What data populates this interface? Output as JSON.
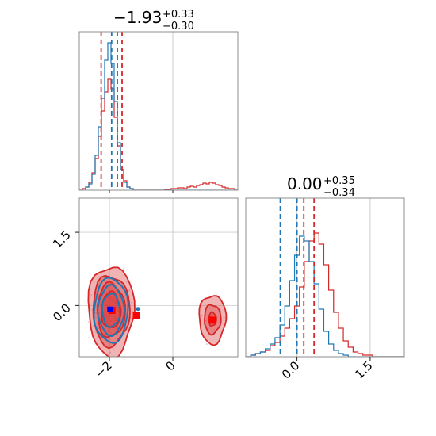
{
  "colors": {
    "blue": "#1f77b4",
    "red": "#d62728",
    "frame": "#8c8c8c",
    "grid": "#cccccc"
  },
  "chart_data": {
    "type": "corner",
    "parameters": [
      {
        "median": "−1.93",
        "plus": "+0.33",
        "minus": "−0.30"
      },
      {
        "median": "0.00",
        "plus": "+0.35",
        "minus": "−0.34"
      }
    ],
    "axis_ranges": {
      "x0": [
        -2.95,
        2.05
      ],
      "x1": [
        -1.05,
        2.2
      ],
      "density": [
        0,
        1
      ]
    },
    "x_ticks": {
      "p0": [
        -2,
        0
      ],
      "p0_labels": [
        "−2",
        "0"
      ],
      "p1": [
        0.0,
        1.5
      ],
      "p1_labels": [
        "0.0",
        "1.5"
      ]
    },
    "y_ticks": {
      "p1": [
        1.5,
        0.0
      ],
      "p1_labels": [
        "1.5",
        "0.0"
      ]
    },
    "grid": true,
    "reference_lines": {
      "p0": 0.0,
      "p1": 0.0
    },
    "hist_p0": {
      "bin_start": -2.95,
      "bin_width": 0.1,
      "blue": [
        0,
        0,
        0.02,
        0.04,
        0.1,
        0.22,
        0.4,
        0.58,
        0.82,
        0.93,
        0.8,
        0.56,
        0.3,
        0.13,
        0.05,
        0.02,
        0.01,
        0,
        0,
        0,
        0,
        0,
        0,
        0,
        0,
        0,
        0,
        0,
        0,
        0,
        0,
        0,
        0,
        0,
        0,
        0,
        0,
        0,
        0,
        0,
        0,
        0,
        0,
        0,
        0,
        0,
        0,
        0,
        0,
        0
      ],
      "red": [
        0,
        0.01,
        0.02,
        0.05,
        0.11,
        0.2,
        0.34,
        0.5,
        0.62,
        0.7,
        0.64,
        0.46,
        0.28,
        0.13,
        0.06,
        0.02,
        0.01,
        0,
        0,
        0,
        0,
        0,
        0,
        0,
        0,
        0,
        0,
        0.005,
        0.005,
        0.01,
        0.01,
        0.015,
        0.015,
        0.01,
        0.02,
        0.025,
        0.02,
        0.03,
        0.035,
        0.045,
        0.04,
        0.05,
        0.045,
        0.035,
        0.03,
        0.02,
        0.015,
        0.01,
        0.01,
        0
      ]
    },
    "hist_p1": {
      "bin_start": -1.05,
      "bin_width": 0.1,
      "blue": [
        0,
        0.01,
        0.02,
        0.03,
        0.05,
        0.08,
        0.12,
        0.2,
        0.32,
        0.48,
        0.64,
        0.76,
        0.73,
        0.6,
        0.46,
        0.3,
        0.16,
        0.08,
        0.04,
        0.02,
        0.01,
        0,
        0,
        0,
        0,
        0,
        0,
        0,
        0,
        0,
        0,
        0,
        0
      ],
      "red": [
        0,
        0.01,
        0.02,
        0.03,
        0.04,
        0.07,
        0.09,
        0.13,
        0.18,
        0.24,
        0.32,
        0.44,
        0.6,
        0.73,
        0.78,
        0.71,
        0.58,
        0.42,
        0.28,
        0.18,
        0.1,
        0.06,
        0.03,
        0.02,
        0.01,
        0.01,
        0,
        0,
        0,
        0,
        0,
        0,
        0
      ]
    },
    "quantile_lines": {
      "p0": {
        "blue": [
          -2.26,
          -1.93,
          -1.6
        ],
        "red": [
          -2.26,
          -1.75,
          -1.6
        ]
      },
      "p1": {
        "blue": [
          -0.34,
          0.0,
          0.35
        ],
        "red": [
          -0.34,
          0.14,
          0.35
        ]
      }
    },
    "contours": {
      "main_center": [
        -1.95,
        -0.1
      ],
      "main_radii": [
        [
          0.72,
          0.92
        ],
        [
          0.58,
          0.72
        ],
        [
          0.44,
          0.55
        ],
        [
          0.3,
          0.37
        ]
      ],
      "secondary_center": [
        1.25,
        -0.28
      ],
      "secondary_radii": [
        [
          0.42,
          0.5
        ],
        [
          0.26,
          0.3
        ],
        [
          0.12,
          0.14
        ]
      ]
    },
    "markers": {
      "blue_square": [
        -1.98,
        -0.08
      ],
      "red_squares": [
        [
          -1.92,
          -0.1
        ],
        [
          -1.15,
          -0.2
        ],
        [
          1.25,
          -0.3
        ]
      ],
      "blue_dot": [
        -1.1,
        -0.07
      ]
    }
  }
}
